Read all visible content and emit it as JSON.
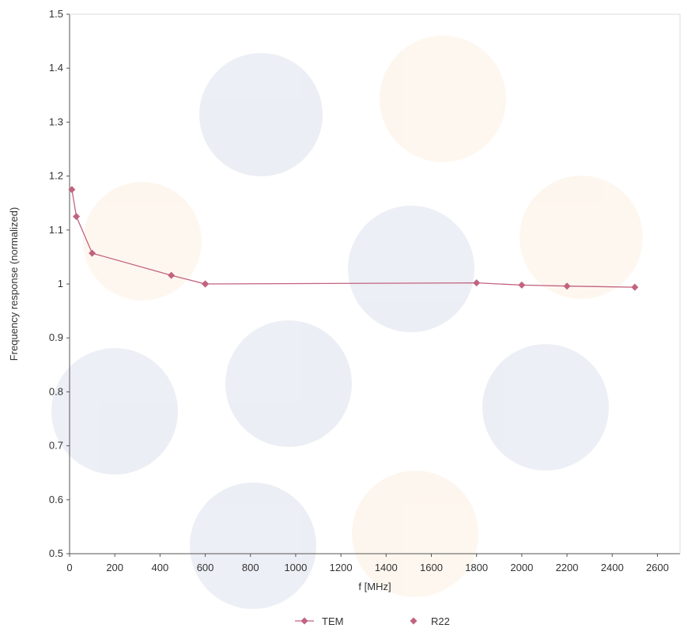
{
  "chart_data": {
    "type": "line",
    "xlabel": "f [MHz]",
    "ylabel": "Frequency response (normalized)",
    "xlim": [
      0,
      2700
    ],
    "ylim": [
      0.5,
      1.5
    ],
    "x_ticks": [
      "0",
      "200",
      "400",
      "600",
      "800",
      "1000",
      "1200",
      "1400",
      "1600",
      "1800",
      "2000",
      "2200",
      "2400",
      "2600"
    ],
    "y_ticks": [
      "0.5",
      "0.6",
      "0.7",
      "0.8",
      "0.9",
      "1",
      "1.1",
      "1.2",
      "1.3",
      "1.4",
      "1.5"
    ],
    "grid": false,
    "legend_position": "bottom-center",
    "series": [
      {
        "name": "TEM",
        "marker": "line-with-diamond",
        "color": "#c2637f",
        "x": [
          10,
          30,
          100,
          450,
          600
        ],
        "y": [
          1.175,
          1.125,
          1.057,
          1.016,
          1.0
        ]
      },
      {
        "name": "R22",
        "marker": "diamond",
        "color": "#c2637f",
        "x": [
          600,
          1800,
          2000,
          2200,
          2500
        ],
        "y": [
          1.0,
          1.002,
          0.998,
          0.996,
          0.994
        ]
      }
    ]
  }
}
